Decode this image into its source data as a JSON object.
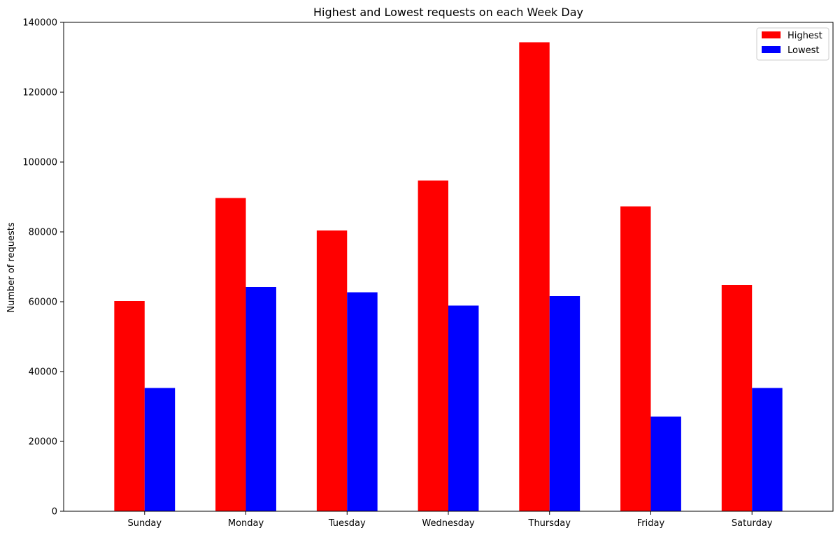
{
  "chart_data": {
    "type": "bar",
    "title": "Highest and Lowest requests on each Week Day",
    "xlabel": "",
    "ylabel": "Number of requests",
    "categories": [
      "Sunday",
      "Monday",
      "Tuesday",
      "Wednesday",
      "Thursday",
      "Friday",
      "Saturday"
    ],
    "series": [
      {
        "name": "Highest",
        "color": "#ff0000",
        "values": [
          60200,
          89700,
          80400,
          94700,
          134300,
          87300,
          64800
        ]
      },
      {
        "name": "Lowest",
        "color": "#0000ff",
        "values": [
          35300,
          64200,
          62700,
          58900,
          61600,
          27100,
          35300
        ]
      }
    ],
    "ylim": [
      0,
      140000
    ],
    "yticks": [
      0,
      20000,
      40000,
      60000,
      80000,
      100000,
      120000,
      140000
    ],
    "grid": false,
    "legend_position": "top-right"
  }
}
